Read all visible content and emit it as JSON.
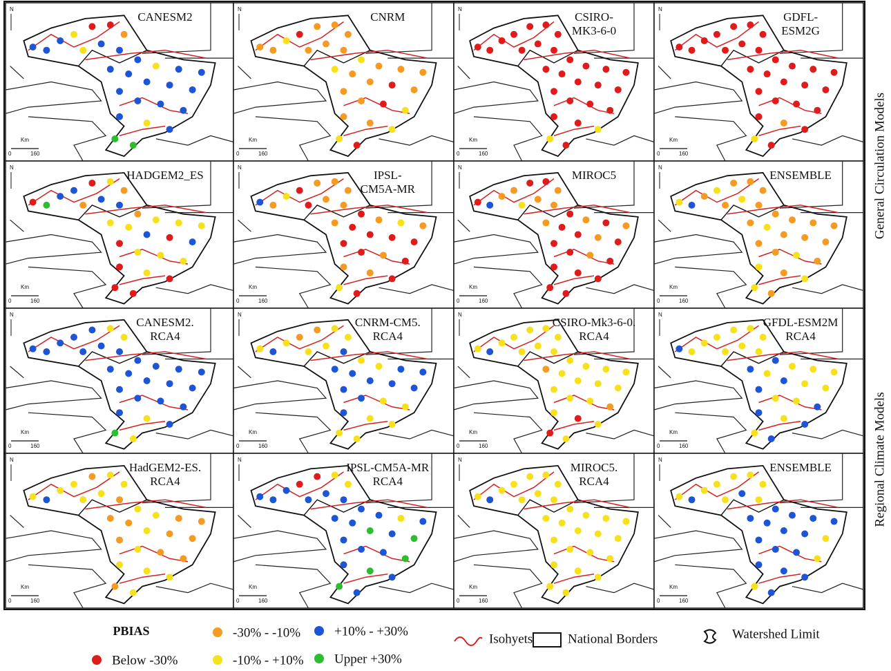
{
  "figure": {
    "north": "N",
    "scale": {
      "unit": "Km",
      "ticks": [
        "0",
        "160"
      ]
    },
    "row_groups": [
      "General Circulation Models",
      "Regional Climate Models"
    ],
    "legend": {
      "title": "PBIAS",
      "classes": [
        {
          "label": "Below -30%",
          "color": "#e01b1b"
        },
        {
          "label": "-30% - -10%",
          "color": "#f59a23"
        },
        {
          "label": "-10% - +10%",
          "color": "#f7e01c"
        },
        {
          "label": "+10% - +30%",
          "color": "#1d55d6"
        },
        {
          "label": "Upper +30%",
          "color": "#2ebd2e"
        }
      ],
      "lines": [
        "Isohyets",
        "National Borders",
        "Watershed Limit"
      ]
    },
    "panels": [
      {
        "title": [
          "CANESM2"
        ],
        "stations": [
          3,
          3,
          3,
          2,
          0,
          0,
          1,
          2,
          3,
          3,
          3,
          2,
          3,
          3,
          3,
          3,
          3,
          3,
          3,
          3,
          3,
          3,
          3,
          3,
          2,
          3,
          4,
          4
        ]
      },
      {
        "title": [
          "CNRM"
        ],
        "stations": [
          1,
          1,
          2,
          0,
          1,
          1,
          1,
          1,
          1,
          1,
          2,
          1,
          1,
          1,
          2,
          1,
          1,
          0,
          1,
          1,
          1,
          0,
          2,
          1,
          1,
          2,
          2,
          0
        ]
      },
      {
        "title": [
          "CSIRO-",
          "MK3-6-0"
        ],
        "stations": [
          0,
          0,
          0,
          0,
          0,
          0,
          0,
          0,
          0,
          0,
          0,
          0,
          0,
          0,
          0,
          0,
          0,
          0,
          0,
          0,
          0,
          0,
          0,
          0,
          0,
          2,
          2,
          0
        ]
      },
      {
        "title": [
          "GDFL-",
          "ESM2G"
        ],
        "stations": [
          0,
          0,
          0,
          0,
          0,
          0,
          0,
          0,
          0,
          0,
          0,
          0,
          0,
          0,
          0,
          0,
          0,
          0,
          0,
          0,
          0,
          0,
          0,
          0,
          1,
          0,
          2,
          0
        ]
      },
      {
        "title": [
          "HADGEM2_ES"
        ],
        "stations": [
          0,
          4,
          3,
          3,
          0,
          2,
          1,
          1,
          3,
          3,
          1,
          2,
          2,
          2,
          2,
          2,
          3,
          0,
          3,
          0,
          2,
          2,
          2,
          0,
          2,
          0,
          0,
          0
        ]
      },
      {
        "title": [
          "IPSL-",
          "CM5A-MR"
        ],
        "stations": [
          3,
          1,
          2,
          0,
          1,
          1,
          1,
          0,
          1,
          1,
          0,
          1,
          2,
          1,
          1,
          0,
          0,
          0,
          0,
          0,
          0,
          1,
          0,
          1,
          1,
          0,
          2,
          0
        ]
      },
      {
        "title": [
          "MIROC5"
        ],
        "stations": [
          0,
          3,
          1,
          1,
          0,
          0,
          1,
          2,
          1,
          1,
          0,
          1,
          0,
          1,
          1,
          0,
          0,
          1,
          0,
          0,
          0,
          1,
          0,
          0,
          0,
          0,
          0,
          0
        ]
      },
      {
        "title": [
          "ENSEMBLE"
        ],
        "stations": [
          2,
          3,
          1,
          2,
          1,
          1,
          1,
          1,
          2,
          1,
          1,
          1,
          1,
          1,
          1,
          2,
          1,
          1,
          1,
          1,
          1,
          2,
          1,
          2,
          1,
          2,
          2,
          1
        ]
      },
      {
        "title": [
          "CANESM2.",
          "RCA4"
        ],
        "stations": [
          3,
          3,
          3,
          3,
          3,
          2,
          2,
          3,
          3,
          3,
          3,
          3,
          3,
          3,
          3,
          3,
          3,
          3,
          3,
          3,
          3,
          3,
          3,
          3,
          2,
          3,
          4,
          2
        ]
      },
      {
        "title": [
          "CNRM-CM5.",
          "RCA4"
        ],
        "stations": [
          2,
          3,
          2,
          1,
          1,
          2,
          2,
          2,
          2,
          3,
          2,
          2,
          3,
          3,
          3,
          3,
          3,
          3,
          3,
          3,
          3,
          2,
          2,
          3,
          2,
          2,
          2,
          2
        ]
      },
      {
        "title": [
          "CSIRO-Mk3-6-0.",
          "RCA4"
        ],
        "stations": [
          2,
          3,
          2,
          2,
          2,
          2,
          2,
          2,
          2,
          2,
          2,
          2,
          2,
          2,
          1,
          2,
          2,
          2,
          2,
          2,
          2,
          2,
          1,
          2,
          0,
          2,
          0,
          2
        ]
      },
      {
        "title": [
          "GFDL-ESM2M",
          "RCA4"
        ],
        "stations": [
          3,
          2,
          2,
          2,
          2,
          2,
          2,
          2,
          2,
          2,
          3,
          2,
          2,
          2,
          3,
          2,
          3,
          2,
          2,
          3,
          2,
          2,
          3,
          3,
          2,
          3,
          2,
          3
        ]
      },
      {
        "title": [
          "HadGEM2-ES.",
          "RCA4"
        ],
        "stations": [
          2,
          3,
          2,
          2,
          1,
          2,
          2,
          2,
          2,
          1,
          2,
          2,
          1,
          1,
          1,
          1,
          2,
          1,
          1,
          1,
          2,
          1,
          1,
          2,
          2,
          2,
          1,
          2
        ]
      },
      {
        "title": [
          "IPSL-CM5A-MR",
          "RCA4"
        ],
        "stations": [
          3,
          3,
          3,
          0,
          0,
          2,
          2,
          3,
          3,
          3,
          3,
          3,
          2,
          3,
          3,
          3,
          4,
          3,
          4,
          3,
          3,
          3,
          4,
          3,
          4,
          3,
          4,
          3
        ]
      },
      {
        "title": [
          "MIROC5.",
          "RCA4"
        ],
        "stations": [
          2,
          3,
          2,
          2,
          2,
          2,
          2,
          2,
          2,
          2,
          2,
          2,
          2,
          2,
          2,
          2,
          2,
          2,
          2,
          2,
          2,
          2,
          2,
          2,
          2,
          2,
          2,
          2
        ]
      },
      {
        "title": [
          "ENSEMBLE"
        ],
        "stations": [
          2,
          3,
          2,
          2,
          2,
          2,
          2,
          2,
          3,
          2,
          3,
          3,
          3,
          3,
          3,
          3,
          3,
          3,
          2,
          3,
          3,
          3,
          2,
          3,
          3,
          3,
          2,
          3
        ]
      }
    ]
  }
}
